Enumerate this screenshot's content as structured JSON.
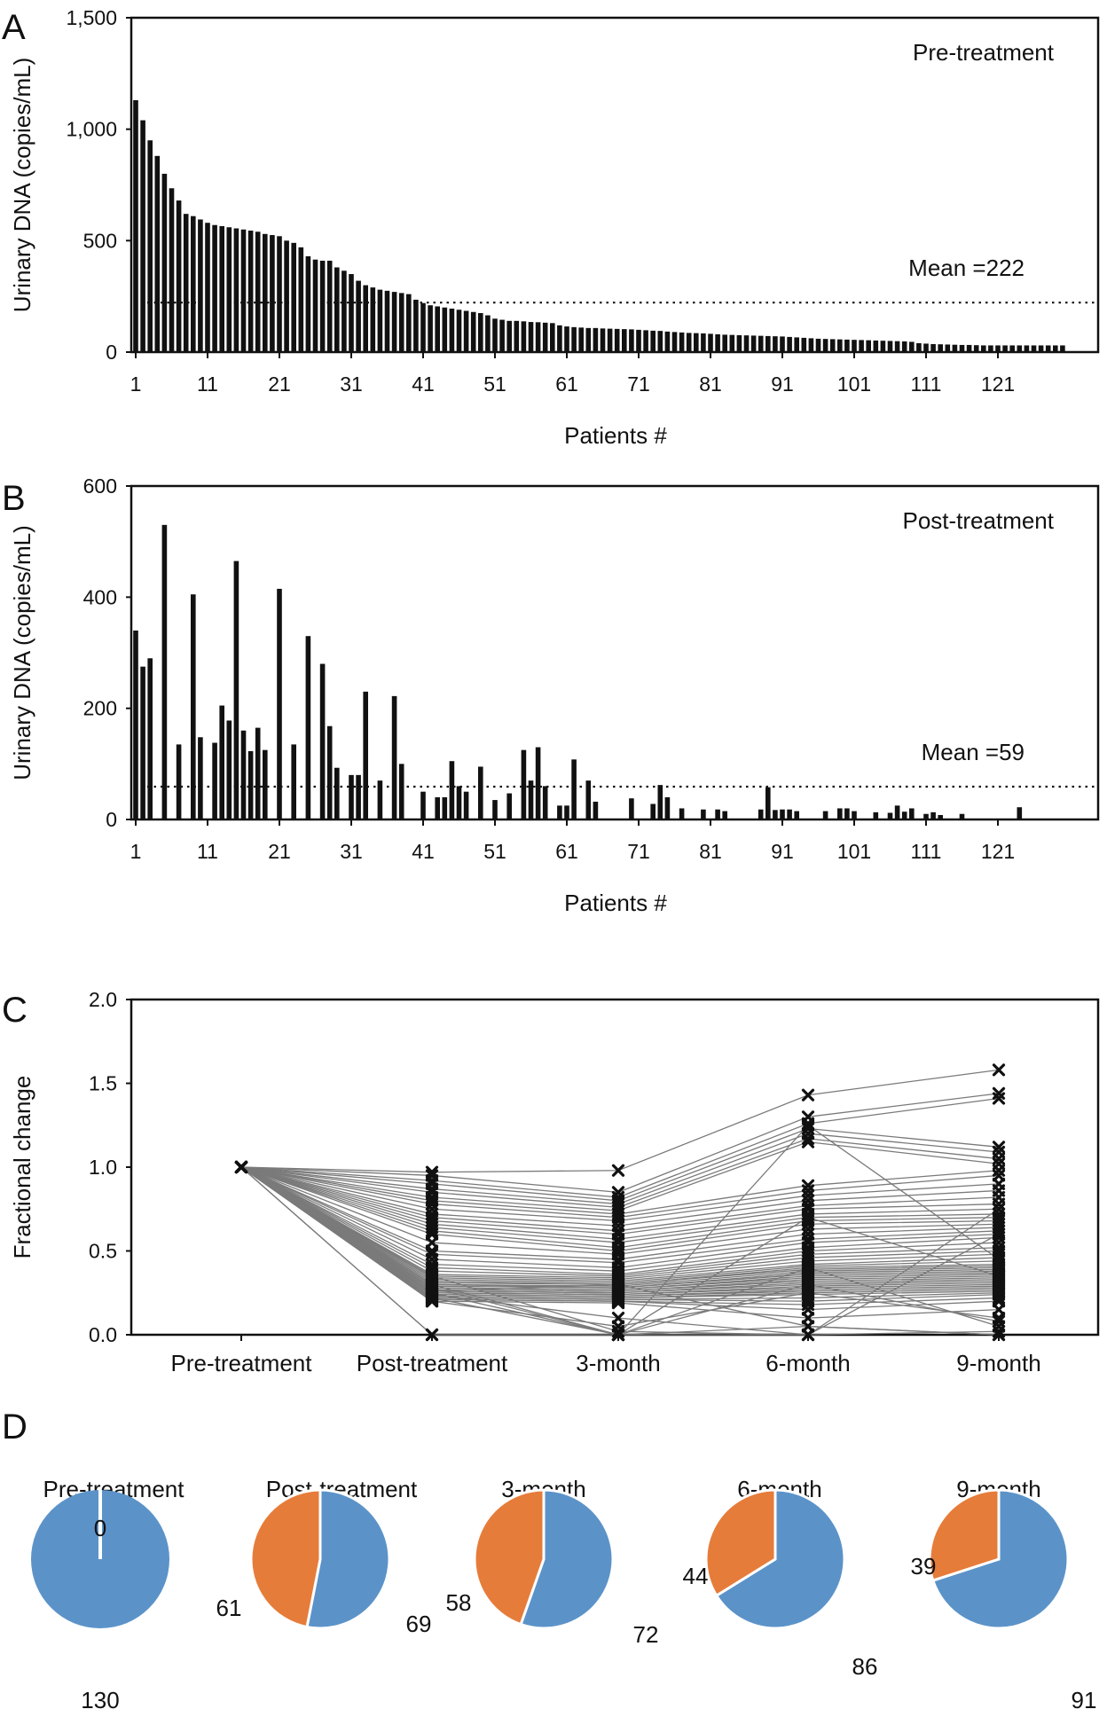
{
  "colors": {
    "bar": "#111111",
    "line": "#7a7a7a",
    "marker": "#111111",
    "pie_blue": "#5b93c9",
    "pie_orange": "#e67c3a"
  },
  "chart_data": [
    {
      "panel": "A",
      "type": "bar",
      "ylabel": "Urinary DNA (copies/mL)",
      "xlabel": "Patients #",
      "ylim": [
        0,
        1500
      ],
      "yticks": [
        0,
        500,
        1000,
        1500
      ],
      "ytick_labels": [
        "0",
        "500",
        "1,000",
        "1,500"
      ],
      "xticks": [
        1,
        11,
        21,
        31,
        41,
        51,
        61,
        71,
        81,
        91,
        101,
        111,
        121
      ],
      "annotation": "Pre-treatment",
      "mean_label": "Mean =222",
      "mean": 222,
      "x": [
        1,
        2,
        3,
        4,
        5,
        6,
        7,
        8,
        9,
        10,
        11,
        12,
        13,
        14,
        15,
        16,
        17,
        18,
        19,
        20,
        21,
        22,
        23,
        24,
        25,
        26,
        27,
        28,
        29,
        30,
        31,
        32,
        33,
        34,
        35,
        36,
        37,
        38,
        39,
        40,
        41,
        42,
        43,
        44,
        45,
        46,
        47,
        48,
        49,
        50,
        51,
        52,
        53,
        54,
        55,
        56,
        57,
        58,
        59,
        60,
        61,
        62,
        63,
        64,
        65,
        66,
        67,
        68,
        69,
        70,
        71,
        72,
        73,
        74,
        75,
        76,
        77,
        78,
        79,
        80,
        81,
        82,
        83,
        84,
        85,
        86,
        87,
        88,
        89,
        90,
        91,
        92,
        93,
        94,
        95,
        96,
        97,
        98,
        99,
        100,
        101,
        102,
        103,
        104,
        105,
        106,
        107,
        108,
        109,
        110,
        111,
        112,
        113,
        114,
        115,
        116,
        117,
        118,
        119,
        120,
        121,
        122,
        123,
        124,
        125,
        126,
        127,
        128,
        129,
        130
      ],
      "values": [
        1130,
        1040,
        950,
        880,
        800,
        735,
        680,
        620,
        610,
        595,
        580,
        570,
        565,
        560,
        555,
        550,
        545,
        540,
        530,
        525,
        520,
        500,
        490,
        470,
        430,
        415,
        410,
        410,
        380,
        365,
        350,
        320,
        300,
        290,
        280,
        275,
        270,
        265,
        260,
        235,
        220,
        210,
        205,
        200,
        195,
        190,
        185,
        180,
        175,
        165,
        150,
        145,
        140,
        140,
        138,
        135,
        134,
        132,
        130,
        120,
        115,
        112,
        110,
        108,
        108,
        106,
        105,
        104,
        103,
        102,
        100,
        98,
        96,
        95,
        92,
        90,
        88,
        86,
        85,
        84,
        82,
        80,
        78,
        77,
        76,
        75,
        74,
        73,
        72,
        71,
        70,
        68,
        66,
        64,
        62,
        60,
        59,
        58,
        57,
        56,
        55,
        54,
        53,
        52,
        51,
        50,
        49,
        48,
        46,
        40,
        38,
        36,
        35,
        34,
        33,
        32,
        32,
        31,
        30,
        30,
        30,
        30,
        30,
        30,
        30,
        30,
        30,
        30,
        30,
        30
      ]
    },
    {
      "panel": "B",
      "type": "bar",
      "ylabel": "Urinary DNA (copies/mL)",
      "xlabel": "Patients #",
      "ylim": [
        0,
        600
      ],
      "yticks": [
        0,
        200,
        400,
        600
      ],
      "ytick_labels": [
        "0",
        "200",
        "400",
        "600"
      ],
      "xticks": [
        1,
        11,
        21,
        31,
        41,
        51,
        61,
        71,
        81,
        91,
        101,
        111,
        121
      ],
      "annotation": "Post-treatment",
      "mean_label": "Mean =59",
      "mean": 59,
      "x": [
        1,
        2,
        3,
        5,
        7,
        9,
        10,
        12,
        13,
        14,
        15,
        16,
        17,
        18,
        19,
        21,
        23,
        25,
        27,
        28,
        29,
        31,
        32,
        33,
        35,
        37,
        38,
        41,
        43,
        44,
        45,
        46,
        47,
        49,
        51,
        53,
        55,
        56,
        57,
        58,
        60,
        61,
        62,
        64,
        65,
        70,
        73,
        74,
        75,
        77,
        80,
        82,
        83,
        88,
        89,
        90,
        91,
        92,
        93,
        97,
        99,
        100,
        101,
        104,
        106,
        107,
        108,
        109,
        111,
        112,
        113,
        116,
        124
      ],
      "values": [
        340,
        275,
        290,
        530,
        135,
        405,
        148,
        138,
        205,
        178,
        465,
        160,
        123,
        165,
        125,
        415,
        135,
        330,
        280,
        168,
        93,
        80,
        80,
        230,
        70,
        222,
        100,
        50,
        40,
        40,
        105,
        60,
        50,
        95,
        35,
        47,
        125,
        70,
        130,
        60,
        25,
        25,
        108,
        70,
        32,
        38,
        28,
        62,
        40,
        20,
        18,
        18,
        15,
        18,
        58,
        17,
        18,
        18,
        15,
        15,
        20,
        20,
        15,
        13,
        12,
        25,
        14,
        20,
        10,
        13,
        8,
        10,
        22
      ]
    },
    {
      "panel": "C",
      "type": "line",
      "ylabel": "Fractional change",
      "categories": [
        "Pre-treatment",
        "Post-treatment",
        "3-month",
        "6-month",
        "9-month"
      ],
      "ylim": [
        0,
        2.0
      ],
      "yticks": [
        0.0,
        0.5,
        1.0,
        1.5,
        2.0
      ],
      "ytick_labels": [
        "0.0",
        "0.5",
        "1.0",
        "1.5",
        "2.0"
      ],
      "series": [
        {
          "values": [
            1.0,
            0.97,
            0.98,
            1.43,
            1.58
          ]
        },
        {
          "values": [
            1.0,
            0.95,
            0.85,
            1.3,
            1.44
          ]
        },
        {
          "values": [
            1.0,
            0.92,
            0.82,
            1.26,
            1.41
          ]
        },
        {
          "values": [
            1.0,
            0.9,
            0.8,
            1.23,
            1.12
          ]
        },
        {
          "values": [
            1.0,
            0.87,
            0.78,
            1.2,
            1.09
          ]
        },
        {
          "values": [
            1.0,
            0.85,
            0.76,
            1.17,
            1.05
          ]
        },
        {
          "values": [
            1.0,
            0.82,
            0.74,
            1.15,
            1.02
          ]
        },
        {
          "values": [
            1.0,
            0.8,
            0.72,
            0.89,
            0.98
          ]
        },
        {
          "values": [
            1.0,
            0.78,
            0.7,
            0.86,
            0.95
          ]
        },
        {
          "values": [
            1.0,
            0.75,
            0.68,
            0.83,
            0.9
          ]
        },
        {
          "values": [
            1.0,
            0.72,
            0.65,
            0.8,
            0.86
          ]
        },
        {
          "values": [
            1.0,
            0.7,
            0.62,
            0.77,
            0.82
          ]
        },
        {
          "values": [
            1.0,
            0.68,
            0.6,
            0.75,
            0.78
          ]
        },
        {
          "values": [
            1.0,
            0.66,
            0.57,
            0.72,
            0.75
          ]
        },
        {
          "values": [
            1.0,
            0.64,
            0.55,
            0.7,
            0.72
          ]
        },
        {
          "values": [
            1.0,
            0.62,
            0.52,
            0.68,
            0.7
          ]
        },
        {
          "values": [
            1.0,
            0.6,
            0.5,
            0.66,
            0.68
          ]
        },
        {
          "values": [
            1.0,
            0.55,
            0.48,
            0.63,
            0.66
          ]
        },
        {
          "values": [
            1.0,
            0.5,
            0.45,
            0.6,
            0.64
          ]
        },
        {
          "values": [
            1.0,
            0.48,
            0.43,
            0.57,
            0.62
          ]
        },
        {
          "values": [
            1.0,
            0.45,
            0.4,
            0.55,
            0.6
          ]
        },
        {
          "values": [
            1.0,
            0.42,
            0.38,
            0.52,
            0.58
          ]
        },
        {
          "values": [
            1.0,
            0.4,
            0.36,
            0.5,
            0.55
          ]
        },
        {
          "values": [
            1.0,
            0.38,
            0.35,
            0.48,
            0.52
          ]
        },
        {
          "values": [
            1.0,
            0.36,
            0.34,
            0.46,
            0.5
          ]
        },
        {
          "values": [
            1.0,
            0.35,
            0.33,
            0.44,
            0.48
          ]
        },
        {
          "values": [
            1.0,
            0.34,
            0.32,
            0.42,
            0.46
          ]
        },
        {
          "values": [
            1.0,
            0.33,
            0.31,
            0.41,
            0.44
          ]
        },
        {
          "values": [
            1.0,
            0.32,
            0.3,
            0.4,
            0.42
          ]
        },
        {
          "values": [
            1.0,
            0.31,
            0.3,
            0.39,
            0.41
          ]
        },
        {
          "values": [
            1.0,
            0.3,
            0.29,
            0.38,
            0.4
          ]
        },
        {
          "values": [
            1.0,
            0.3,
            0.28,
            0.37,
            0.39
          ]
        },
        {
          "values": [
            1.0,
            0.29,
            0.28,
            0.36,
            0.38
          ]
        },
        {
          "values": [
            1.0,
            0.28,
            0.27,
            0.35,
            0.37
          ]
        },
        {
          "values": [
            1.0,
            0.28,
            0.27,
            0.34,
            0.36
          ]
        },
        {
          "values": [
            1.0,
            0.27,
            0.26,
            0.33,
            0.35
          ]
        },
        {
          "values": [
            1.0,
            0.27,
            0.26,
            0.32,
            0.34
          ]
        },
        {
          "values": [
            1.0,
            0.26,
            0.25,
            0.31,
            0.33
          ]
        },
        {
          "values": [
            1.0,
            0.26,
            0.25,
            0.3,
            0.32
          ]
        },
        {
          "values": [
            1.0,
            0.25,
            0.24,
            0.29,
            0.31
          ]
        },
        {
          "values": [
            1.0,
            0.25,
            0.24,
            0.28,
            0.3
          ]
        },
        {
          "values": [
            1.0,
            0.24,
            0.23,
            0.27,
            0.29
          ]
        },
        {
          "values": [
            1.0,
            0.24,
            0.23,
            0.26,
            0.28
          ]
        },
        {
          "values": [
            1.0,
            0.23,
            0.22,
            0.25,
            0.27
          ]
        },
        {
          "values": [
            1.0,
            0.23,
            0.22,
            0.24,
            0.26
          ]
        },
        {
          "values": [
            1.0,
            0.22,
            0.21,
            0.22,
            0.25
          ]
        },
        {
          "values": [
            1.0,
            0.22,
            0.21,
            0.2,
            0.24
          ]
        },
        {
          "values": [
            1.0,
            0.21,
            0.2,
            0.18,
            0.22
          ]
        },
        {
          "values": [
            1.0,
            0.21,
            0.2,
            0.15,
            0.2
          ]
        },
        {
          "values": [
            1.0,
            0.2,
            0.19,
            0.1,
            0.15
          ]
        },
        {
          "values": [
            1.0,
            0.2,
            0.05,
            0.25,
            0.1
          ]
        },
        {
          "values": [
            1.0,
            0.22,
            0.0,
            0.3,
            0.08
          ]
        },
        {
          "values": [
            1.0,
            0.25,
            0.0,
            0.7,
            0.35
          ]
        },
        {
          "values": [
            1.0,
            0.3,
            0.0,
            1.25,
            0.45
          ]
        },
        {
          "values": [
            1.0,
            0.35,
            0.02,
            0.0,
            0.6
          ]
        },
        {
          "values": [
            1.0,
            0.24,
            0.1,
            0.0,
            0.75
          ]
        },
        {
          "values": [
            1.0,
            0.0,
            0.0,
            0.05,
            0.0
          ]
        },
        {
          "values": [
            1.0,
            0.0,
            0.0,
            0.0,
            0.02
          ]
        },
        {
          "values": [
            1.0,
            0.26,
            0.3,
            0.05,
            0.0
          ]
        },
        {
          "values": [
            1.0,
            0.28,
            0.0,
            0.4,
            0.05
          ]
        }
      ]
    },
    {
      "panel": "D",
      "type": "pie",
      "pies": [
        {
          "title": "Pre-treatment",
          "orange": 0,
          "blue": 130,
          "orange_label": "0",
          "blue_label": "130"
        },
        {
          "title": "Post-treatment",
          "orange": 61,
          "blue": 69,
          "orange_label": "61",
          "blue_label": "69"
        },
        {
          "title": "3-month",
          "orange": 58,
          "blue": 72,
          "orange_label": "58",
          "blue_label": "72"
        },
        {
          "title": "6-month",
          "orange": 44,
          "blue": 86,
          "orange_label": "44",
          "blue_label": "86"
        },
        {
          "title": "9-month",
          "orange": 39,
          "blue": 91,
          "orange_label": "39",
          "blue_label": "91"
        }
      ]
    }
  ]
}
